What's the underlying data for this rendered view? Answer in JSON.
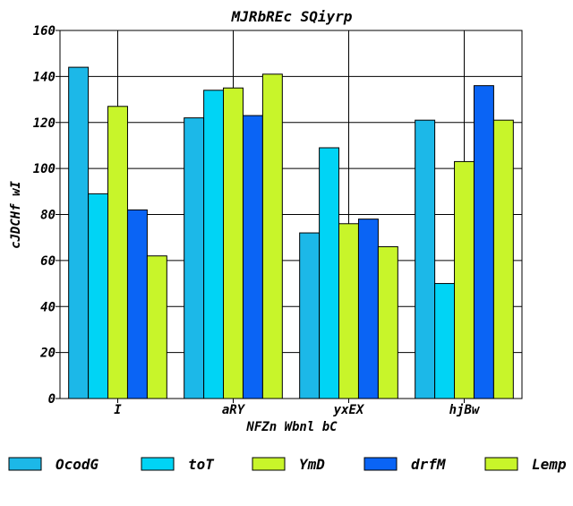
{
  "chart_data": {
    "type": "bar",
    "title": "MJRbREc SQiyrp",
    "xlabel": "NFZn Wbnl bC",
    "ylabel": "cJDCHf wI",
    "ylim": [
      0,
      160
    ],
    "yticks": [
      0,
      20,
      40,
      60,
      80,
      100,
      120,
      140,
      160
    ],
    "grid": true,
    "legend_position": "bottom",
    "categories": [
      "I",
      "aRY",
      "yxEX",
      "hjBw"
    ],
    "series": [
      {
        "name": "OcodG",
        "color": "#1cb8e8",
        "values": [
          144,
          122,
          72,
          121
        ]
      },
      {
        "name": "toT",
        "color": "#00d4f5",
        "values": [
          89,
          134,
          109,
          50
        ]
      },
      {
        "name": "YmD",
        "color": "#c8f52a",
        "values": [
          127,
          135,
          76,
          103
        ]
      },
      {
        "name": "drfM",
        "color": "#0a64f5",
        "values": [
          82,
          123,
          78,
          136
        ]
      },
      {
        "name": "Lemp",
        "color": "#c8f52a",
        "values": [
          62,
          141,
          66,
          121
        ]
      }
    ]
  }
}
